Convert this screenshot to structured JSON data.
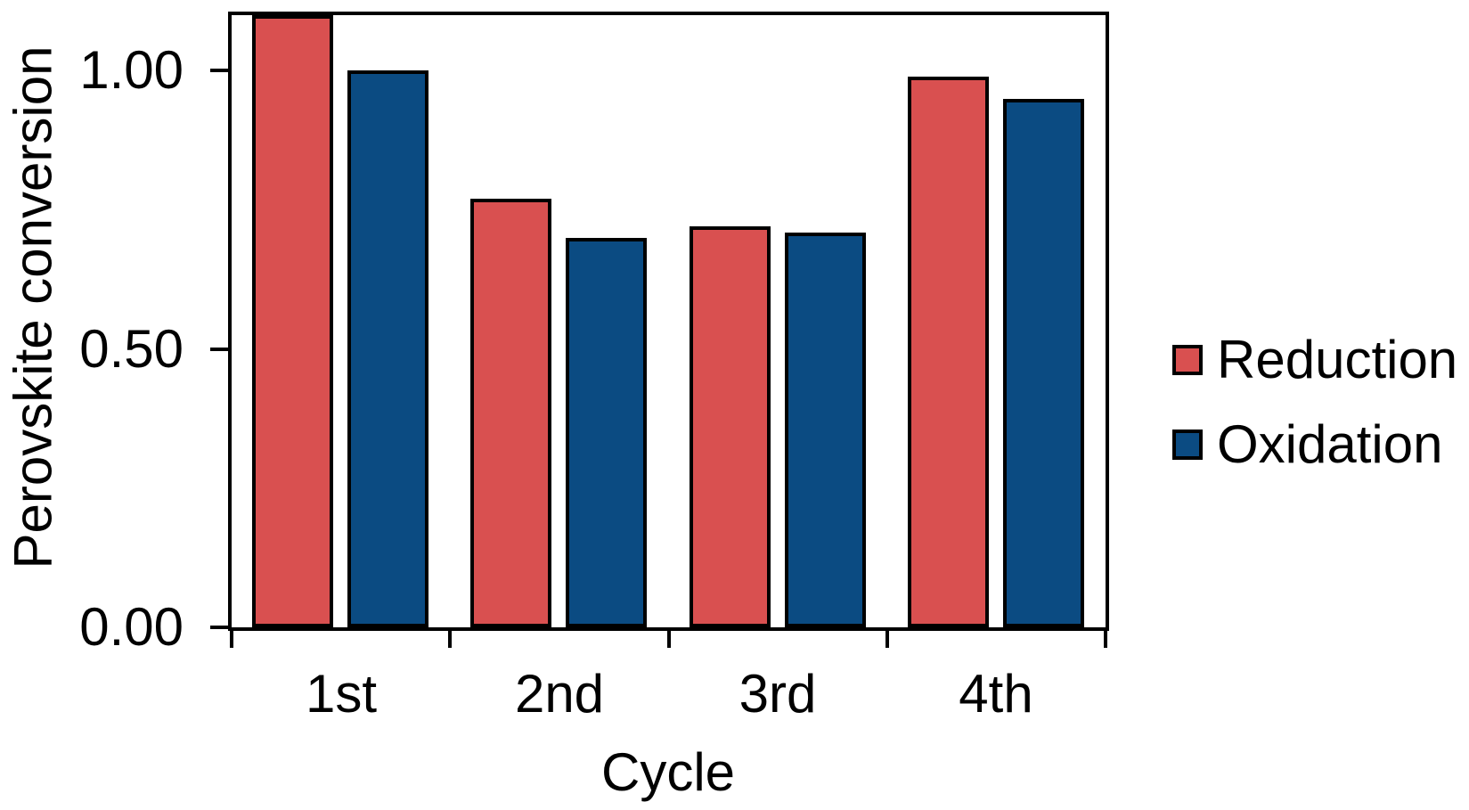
{
  "chart_data": {
    "type": "bar",
    "title": "",
    "xlabel": "Cycle",
    "ylabel": "Perovskite conversion",
    "categories": [
      "1st",
      "2nd",
      "3rd",
      "4th"
    ],
    "series": [
      {
        "name": "Reduction",
        "color": "#D95050",
        "values": [
          1.1,
          0.77,
          0.72,
          0.99
        ]
      },
      {
        "name": "Oxidation",
        "color": "#0B4B82",
        "values": [
          1.0,
          0.7,
          0.71,
          0.95
        ]
      }
    ],
    "ylim": [
      0.0,
      1.1
    ],
    "yticks": [
      {
        "value": 1.0,
        "label": "1.00"
      },
      {
        "value": 0.5,
        "label": "0.50"
      },
      {
        "value": 0.0,
        "label": "0.00"
      }
    ],
    "grid": false,
    "legend_position": "right-center",
    "plot_frame": true,
    "bar_border_color": "#000000",
    "axis_color": "#000000",
    "background": "#FFFFFF",
    "first_reduction_bar_clipped_at_top": true
  }
}
